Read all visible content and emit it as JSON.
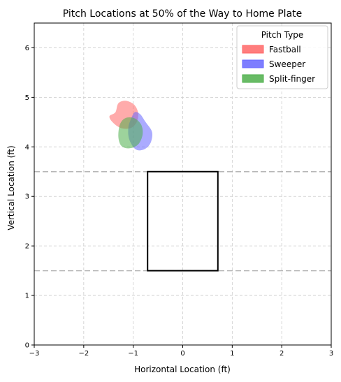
{
  "chart_data": {
    "type": "scatter",
    "title": "Pitch Locations at 50% of the Way to Home Plate",
    "xlabel": "Horizontal Location (ft)",
    "ylabel": "Vertical Location (ft)",
    "xlim": [
      -3,
      3
    ],
    "ylim": [
      0,
      6.5
    ],
    "xticks": [
      -3,
      -2,
      -1,
      0,
      1,
      2,
      3
    ],
    "yticks": [
      0,
      1,
      2,
      3,
      4,
      5,
      6
    ],
    "grid": true,
    "legend": {
      "title": "Pitch Type",
      "placement": "top-right"
    },
    "strike_zone": {
      "x": [
        -0.71,
        0.71
      ],
      "y": [
        1.5,
        3.5
      ]
    },
    "reference_lines_y": [
      1.5,
      3.5
    ],
    "series": [
      {
        "name": "Fastball",
        "color": "#ff6666",
        "outline": [
          [
            -1.36,
            4.7
          ],
          [
            -1.3,
            4.88
          ],
          [
            -1.15,
            4.93
          ],
          [
            -0.98,
            4.85
          ],
          [
            -0.9,
            4.68
          ],
          [
            -0.93,
            4.5
          ],
          [
            -1.05,
            4.38
          ],
          [
            -1.25,
            4.38
          ],
          [
            -1.42,
            4.5
          ],
          [
            -1.48,
            4.62
          ]
        ]
      },
      {
        "name": "Sweeper",
        "color": "#6666ff",
        "outline": [
          [
            -1.05,
            4.55
          ],
          [
            -0.97,
            4.7
          ],
          [
            -0.86,
            4.66
          ],
          [
            -0.75,
            4.5
          ],
          [
            -0.62,
            4.3
          ],
          [
            -0.65,
            4.08
          ],
          [
            -0.78,
            3.95
          ],
          [
            -0.95,
            3.95
          ],
          [
            -1.08,
            4.15
          ],
          [
            -1.1,
            4.38
          ]
        ]
      },
      {
        "name": "Split-finger",
        "color": "#4daf4a",
        "outline": [
          [
            -1.27,
            4.45
          ],
          [
            -1.16,
            4.58
          ],
          [
            -0.98,
            4.58
          ],
          [
            -0.84,
            4.45
          ],
          [
            -0.81,
            4.25
          ],
          [
            -0.9,
            4.05
          ],
          [
            -1.08,
            3.97
          ],
          [
            -1.24,
            4.02
          ],
          [
            -1.3,
            4.2
          ]
        ]
      }
    ]
  }
}
